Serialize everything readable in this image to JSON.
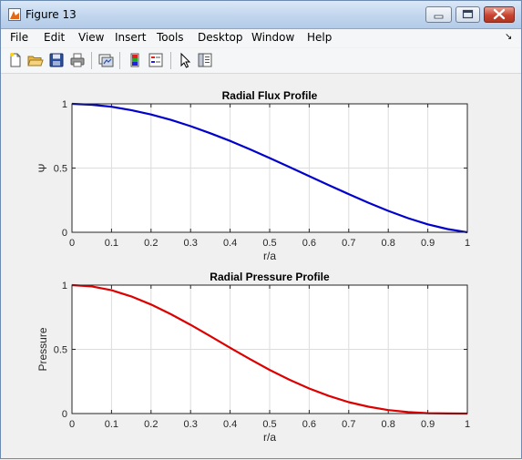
{
  "window": {
    "title": "Figure 13",
    "app_icon": "matlab-figure-icon"
  },
  "menubar": {
    "items": [
      {
        "label": "File"
      },
      {
        "label": "Edit"
      },
      {
        "label": "View"
      },
      {
        "label": "Insert"
      },
      {
        "label": "Tools"
      },
      {
        "label": "Desktop"
      },
      {
        "label": "Window"
      },
      {
        "label": "Help"
      }
    ]
  },
  "toolbar": {
    "buttons": [
      "new-figure-icon",
      "open-file-icon",
      "save-icon",
      "print-icon",
      "link-plot-icon",
      "insert-colorbar-icon",
      "insert-legend-icon",
      "edit-plot-pointer-icon",
      "property-inspector-icon"
    ]
  },
  "chart_data": [
    {
      "type": "line",
      "title": "Radial Flux Profile",
      "xlabel": "r/a",
      "ylabel": "Ψ",
      "xlim": [
        0,
        1
      ],
      "ylim": [
        0,
        1
      ],
      "xticks": [
        "0",
        "0.1",
        "0.2",
        "0.3",
        "0.4",
        "0.5",
        "0.6",
        "0.7",
        "0.8",
        "0.9",
        "1"
      ],
      "yticks": [
        "0",
        "0.5",
        "1"
      ],
      "grid": true,
      "series": [
        {
          "color": "#0000cc",
          "x": [
            0,
            0.05,
            0.1,
            0.15,
            0.2,
            0.25,
            0.3,
            0.35,
            0.4,
            0.45,
            0.5,
            0.55,
            0.6,
            0.65,
            0.7,
            0.75,
            0.8,
            0.85,
            0.9,
            0.95,
            1
          ],
          "y": [
            1,
            0.993,
            0.977,
            0.951,
            0.917,
            0.875,
            0.826,
            0.771,
            0.711,
            0.646,
            0.578,
            0.508,
            0.437,
            0.366,
            0.297,
            0.23,
            0.167,
            0.11,
            0.062,
            0.025,
            0.0
          ]
        }
      ]
    },
    {
      "type": "line",
      "title": "Radial Pressure Profile",
      "xlabel": "r/a",
      "ylabel": "Pressure",
      "xlim": [
        0,
        1
      ],
      "ylim": [
        0,
        1
      ],
      "xticks": [
        "0",
        "0.1",
        "0.2",
        "0.3",
        "0.4",
        "0.5",
        "0.6",
        "0.7",
        "0.8",
        "0.9",
        "1"
      ],
      "yticks": [
        "0",
        "0.5",
        "1"
      ],
      "grid": true,
      "series": [
        {
          "color": "#dd0000",
          "x": [
            0,
            0.05,
            0.1,
            0.15,
            0.2,
            0.25,
            0.3,
            0.35,
            0.4,
            0.45,
            0.5,
            0.55,
            0.6,
            0.65,
            0.7,
            0.75,
            0.8,
            0.85,
            0.9,
            0.95,
            1
          ],
          "y": [
            1,
            0.99,
            0.96,
            0.912,
            0.849,
            0.774,
            0.691,
            0.602,
            0.512,
            0.424,
            0.34,
            0.263,
            0.195,
            0.137,
            0.089,
            0.053,
            0.027,
            0.011,
            0.003,
            0.0005,
            0.0
          ]
        }
      ]
    }
  ]
}
